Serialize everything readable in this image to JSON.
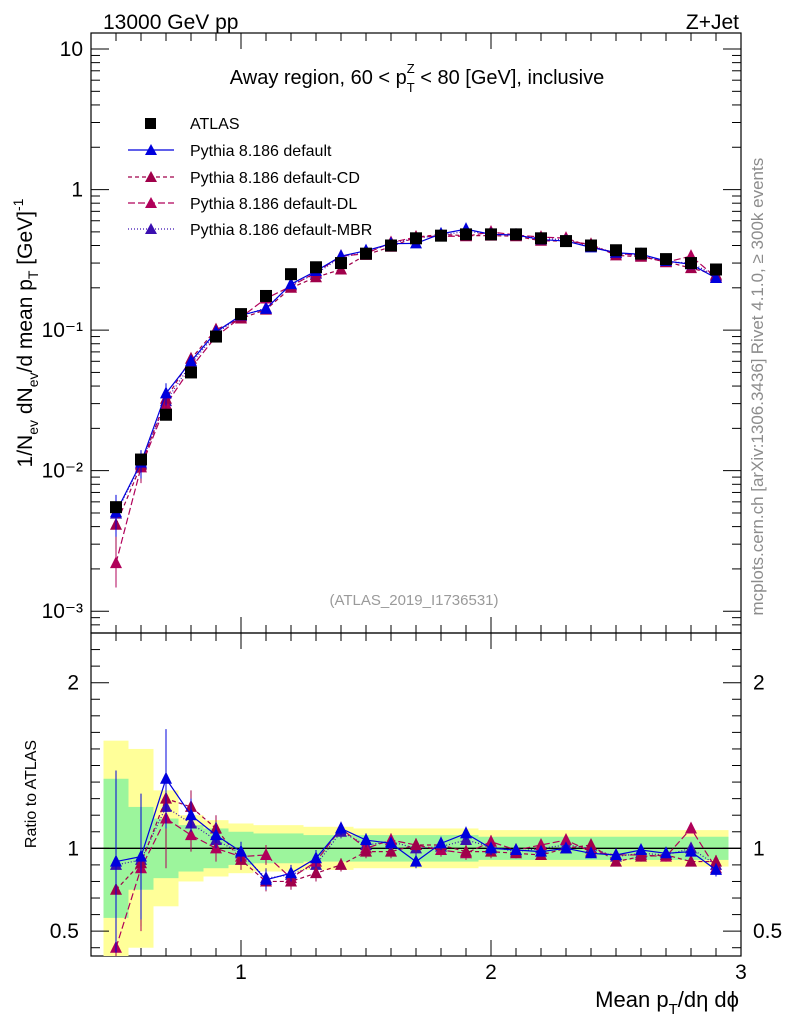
{
  "header": {
    "left": "13000 GeV pp",
    "right": "Z+Jet",
    "title_pre": "Away region, 60 < p",
    "title_sup": "Z",
    "title_sub": "T",
    "title_post": " < 80 [GeV], inclusive"
  },
  "side_labels": {
    "rivet": "Rivet 4.1.0, ≥ 300k events",
    "mcplots": "mcplots.cern.ch [arXiv:1306.3436]"
  },
  "analysis_id": "(ATLAS_2019_I1736531)",
  "colors": {
    "atlas": "#000000",
    "default": "#0000dd",
    "cd": "#a0004a",
    "dl": "#b0005a",
    "mbr": "#3a0fb0",
    "band_inner": "#9cf59c",
    "band_outer": "#ffff99"
  },
  "chart_data": {
    "type": "scatter",
    "x": [
      0.5,
      0.6,
      0.7,
      0.8,
      0.9,
      1.0,
      1.1,
      1.2,
      1.3,
      1.4,
      1.5,
      1.6,
      1.7,
      1.8,
      1.9,
      2.0,
      2.1,
      2.2,
      2.3,
      2.4,
      2.5,
      2.6,
      2.7,
      2.8,
      2.9
    ],
    "xlabel": "Mean p_T/dη dφ",
    "x_range": [
      0.4,
      3.0
    ],
    "x_ticks": [
      "1",
      "2",
      "3"
    ],
    "main": {
      "ylabel": "1/N_ev dN_ev/d mean p_T [GeV]^-1",
      "yscale": "log",
      "y_range": [
        0.0007,
        13
      ],
      "y_ticks": [
        "10⁻³",
        "10⁻²",
        "10⁻¹",
        "1",
        "10"
      ]
    },
    "ratio": {
      "ylabel": "Ratio to ATLAS",
      "y_range": [
        0.35,
        2.3
      ],
      "y_ticks": [
        "0.5",
        "1",
        "2"
      ]
    },
    "legend": {
      "atlas": "ATLAS",
      "default": "Pythia 8.186 default",
      "cd": "Pythia 8.186 default-CD",
      "dl": "Pythia 8.186 default-DL",
      "mbr": "Pythia 8.186 default-MBR"
    },
    "atlas": [
      0.0055,
      0.012,
      0.025,
      0.05,
      0.09,
      0.13,
      0.175,
      0.25,
      0.28,
      0.3,
      0.35,
      0.4,
      0.45,
      0.47,
      0.48,
      0.48,
      0.48,
      0.45,
      0.43,
      0.4,
      0.37,
      0.35,
      0.32,
      0.3,
      0.27
    ],
    "band_inner": [
      0.42,
      0.25,
      0.18,
      0.14,
      0.12,
      0.1,
      0.09,
      0.09,
      0.08,
      0.08,
      0.08,
      0.08,
      0.08,
      0.08,
      0.08,
      0.07,
      0.07,
      0.07,
      0.07,
      0.07,
      0.07,
      0.07,
      0.07,
      0.07,
      0.07
    ],
    "band_outer": [
      0.65,
      0.6,
      0.35,
      0.2,
      0.17,
      0.15,
      0.14,
      0.14,
      0.13,
      0.13,
      0.12,
      0.12,
      0.12,
      0.12,
      0.12,
      0.11,
      0.11,
      0.11,
      0.11,
      0.11,
      0.11,
      0.11,
      0.11,
      0.11,
      0.11
    ],
    "ratios": {
      "default": [
        0.92,
        0.95,
        1.42,
        1.2,
        1.08,
        0.98,
        0.81,
        0.85,
        0.94,
        1.12,
        1.05,
        1.03,
        0.92,
        1.03,
        1.09,
        1.0,
        0.99,
        0.98,
        1.0,
        0.97,
        0.96,
        0.99,
        0.97,
        0.98,
        0.87
      ],
      "cd": [
        0.75,
        0.91,
        1.3,
        1.25,
        1.12,
        0.93,
        0.8,
        0.8,
        0.85,
        0.9,
        0.98,
        0.98,
        1.02,
        1.02,
        0.98,
        0.98,
        0.97,
        0.96,
        1.0,
        1.02,
        0.92,
        0.95,
        0.96,
        0.92,
        0.92
      ],
      "dl": [
        0.4,
        0.88,
        1.18,
        1.08,
        1.0,
        0.95,
        0.96,
        0.82,
        0.92,
        1.12,
        1.0,
        1.05,
        1.02,
        0.99,
        0.97,
        1.04,
        0.99,
        1.02,
        1.05,
        0.98,
        0.96,
        0.96,
        0.95,
        1.12,
        0.88
      ],
      "mbr": [
        0.9,
        0.93,
        1.25,
        1.15,
        1.05,
        0.97,
        0.82,
        0.84,
        0.9,
        1.1,
        1.02,
        1.04,
        1.0,
        1.01,
        1.05,
        1.01,
        0.98,
        1.0,
        1.02,
        1.0,
        0.95,
        0.97,
        0.96,
        1.0,
        0.9
      ]
    },
    "ratio_errors": [
      0.55,
      0.38,
      0.3,
      0.1,
      0.08,
      0.06,
      0.06,
      0.05,
      0.05,
      0.04,
      0.04,
      0.04,
      0.04,
      0.04,
      0.04,
      0.04,
      0.03,
      0.03,
      0.03,
      0.03,
      0.03,
      0.03,
      0.03,
      0.03,
      0.04
    ]
  }
}
